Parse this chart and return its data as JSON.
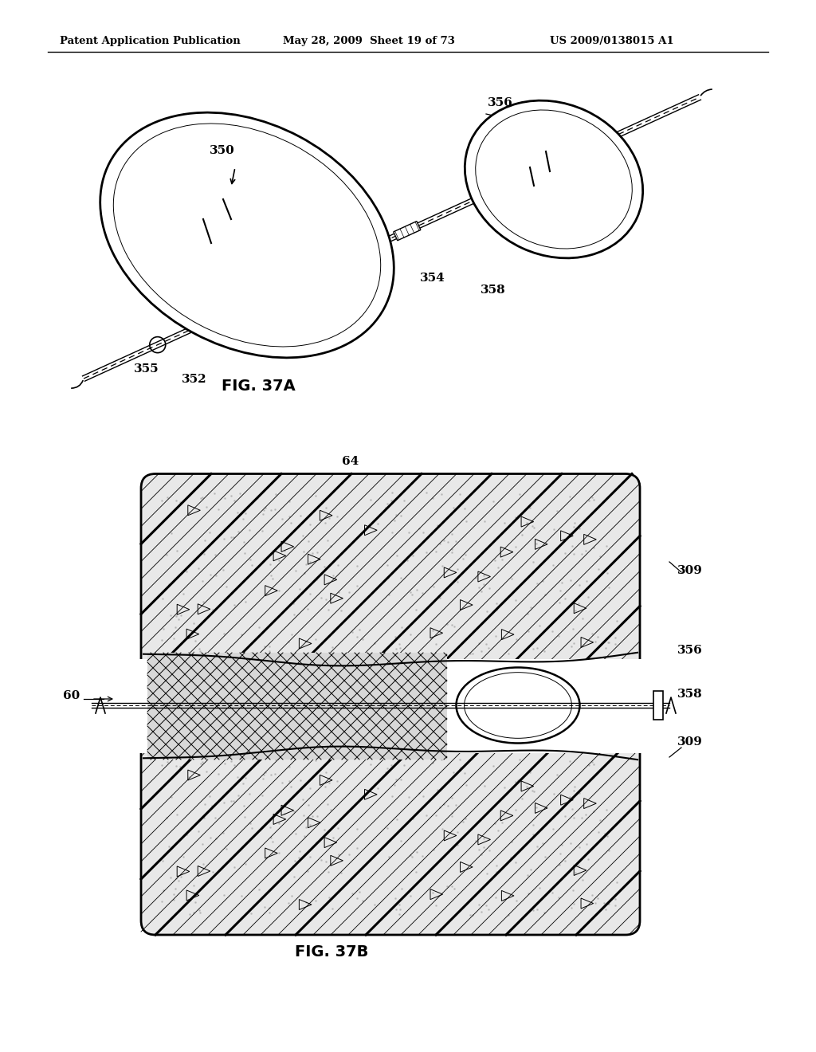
{
  "bg_color": "#ffffff",
  "header_text": "Patent Application Publication",
  "header_date": "May 28, 2009  Sheet 19 of 73",
  "header_patent": "US 2009/0138015 A1",
  "fig37a_label": "FIG. 37A",
  "fig37b_label": "FIG. 37B"
}
